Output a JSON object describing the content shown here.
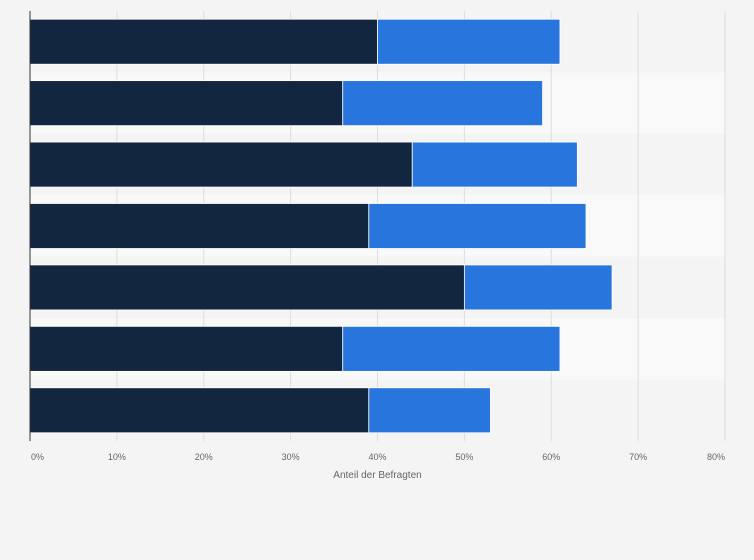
{
  "chart_data": {
    "type": "bar",
    "orientation": "horizontal",
    "stacked": true,
    "categories": [
      "",
      "",
      "",
      "",
      "",
      "",
      ""
    ],
    "series": [
      {
        "name": "",
        "color": "#12263f",
        "values": [
          40,
          36,
          44,
          39,
          50,
          36,
          39
        ]
      },
      {
        "name": "",
        "color": "#2876dd",
        "values": [
          21,
          23,
          19,
          25,
          17,
          25,
          14
        ]
      }
    ],
    "xlim": [
      0,
      80
    ],
    "x_ticks": [
      "0%",
      "10%",
      "20%",
      "30%",
      "40%",
      "50%",
      "60%",
      "70%",
      "80%"
    ],
    "xlabel": "Anteil der Befragten",
    "ylabel": "",
    "title": "",
    "grid": true,
    "legend": "none",
    "colors": {
      "background": "#f4f4f4",
      "band_alt": "#f9f9f9",
      "gridline": "#dddddd",
      "axis": "#333333"
    }
  }
}
